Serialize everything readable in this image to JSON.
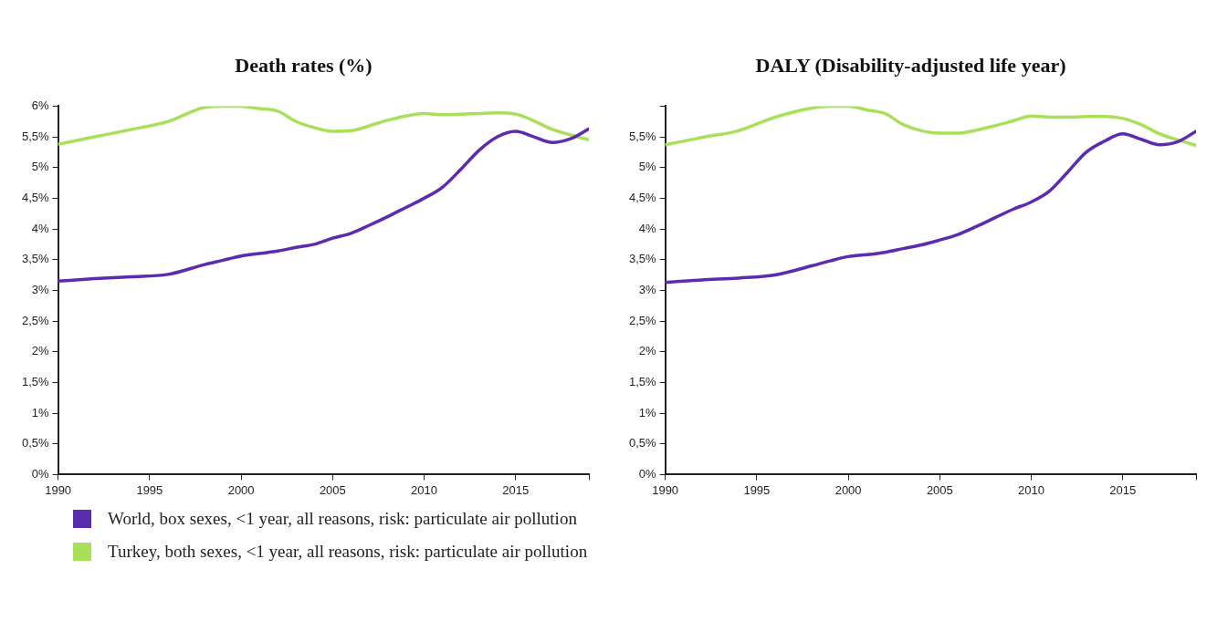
{
  "chart_data": [
    {
      "type": "line",
      "title": "Death rates (%)",
      "legend": "bottom",
      "grid": false,
      "marker": "none",
      "line_style": "solid",
      "x": [
        1990,
        1992,
        1994,
        1996,
        1998,
        1999,
        2000,
        2001,
        2002,
        2003,
        2004,
        2005,
        2006,
        2007,
        2008,
        2009,
        2010,
        2011,
        2012,
        2013,
        2014,
        2015,
        2016,
        2017,
        2018,
        2019
      ],
      "xlim": [
        1990,
        2019
      ],
      "xticks": [
        1990,
        1995,
        2000,
        2005,
        2010,
        2015,
        {
          "value": 2019,
          "label": null
        }
      ],
      "ylim": [
        0,
        6
      ],
      "yticks": [
        {
          "value": 0,
          "label": "0%"
        },
        {
          "value": 0.5,
          "label": "0,5%"
        },
        {
          "value": 1,
          "label": "1%"
        },
        {
          "value": 1.5,
          "label": "1,5%"
        },
        {
          "value": 2,
          "label": "2%"
        },
        {
          "value": 2.5,
          "label": "2,5%"
        },
        {
          "value": 3,
          "label": "3%"
        },
        {
          "value": 3.5,
          "label": "3,5%"
        },
        {
          "value": 4,
          "label": "4%"
        },
        {
          "value": 4.5,
          "label": "4,5%"
        },
        {
          "value": 5,
          "label": "5%"
        },
        {
          "value": 5.5,
          "label": "5,5%"
        },
        {
          "value": 6,
          "label": "6%"
        }
      ],
      "series": [
        {
          "name": "World, box sexes, <1 year, all reasons, risk: particulate air pollution",
          "color": "#5b2bb0",
          "values": [
            3.15,
            3.19,
            3.22,
            3.26,
            3.42,
            3.49,
            3.56,
            3.6,
            3.64,
            3.7,
            3.75,
            3.85,
            3.93,
            4.06,
            4.2,
            4.35,
            4.5,
            4.68,
            4.97,
            5.28,
            5.5,
            5.59,
            5.5,
            5.41,
            5.47,
            5.63
          ]
        },
        {
          "name": "Turkey, both sexes, <1 year, all reasons, risk: particulate air pollution",
          "color": "#a8e05a",
          "values": [
            5.38,
            5.5,
            5.62,
            5.75,
            5.98,
            6.0,
            6.0,
            5.96,
            5.92,
            5.75,
            5.65,
            5.59,
            5.6,
            5.68,
            5.77,
            5.84,
            5.88,
            5.86,
            5.87,
            5.88,
            5.89,
            5.87,
            5.76,
            5.62,
            5.53,
            5.45
          ]
        }
      ]
    },
    {
      "type": "line",
      "title": "DALY (Disability-adjusted life year)",
      "legend": false,
      "grid": false,
      "marker": "none",
      "line_style": "solid",
      "x": [
        1990,
        1992,
        1994,
        1996,
        1998,
        1999,
        2000,
        2001,
        2002,
        2003,
        2004,
        2005,
        2006,
        2007,
        2008,
        2009,
        2010,
        2011,
        2012,
        2013,
        2014,
        2015,
        2016,
        2017,
        2018,
        2019
      ],
      "xlim": [
        1990,
        2019
      ],
      "xticks": [
        1990,
        1995,
        2000,
        2005,
        2010,
        2015,
        {
          "value": 2019,
          "label": null
        }
      ],
      "ylim": [
        0,
        6
      ],
      "yticks": [
        {
          "value": 0,
          "label": "0%"
        },
        {
          "value": 0.5,
          "label": "0,5%"
        },
        {
          "value": 1,
          "label": "1%"
        },
        {
          "value": 1.5,
          "label": "1,5%"
        },
        {
          "value": 2,
          "label": "2%"
        },
        {
          "value": 2.5,
          "label": "2,5%"
        },
        {
          "value": 3,
          "label": "3%"
        },
        {
          "value": 3.5,
          "label": "3,5%"
        },
        {
          "value": 4,
          "label": "4%"
        },
        {
          "value": 4.5,
          "label": "4,5%"
        },
        {
          "value": 5,
          "label": "5%"
        },
        {
          "value": 5.5,
          "label": "5,5%"
        },
        {
          "value": 6,
          "label": null
        }
      ],
      "series": [
        {
          "color": "#5b2bb0",
          "values": [
            3.13,
            3.17,
            3.2,
            3.25,
            3.4,
            3.48,
            3.55,
            3.58,
            3.62,
            3.68,
            3.74,
            3.82,
            3.91,
            4.04,
            4.18,
            4.32,
            4.44,
            4.62,
            4.93,
            5.25,
            5.43,
            5.55,
            5.46,
            5.37,
            5.42,
            5.59
          ]
        },
        {
          "color": "#a8e05a",
          "values": [
            5.37,
            5.49,
            5.6,
            5.82,
            5.97,
            6.0,
            6.0,
            5.94,
            5.88,
            5.7,
            5.6,
            5.56,
            5.56,
            5.61,
            5.68,
            5.76,
            5.84,
            5.82,
            5.82,
            5.83,
            5.83,
            5.8,
            5.7,
            5.55,
            5.45,
            5.36
          ]
        }
      ]
    }
  ]
}
